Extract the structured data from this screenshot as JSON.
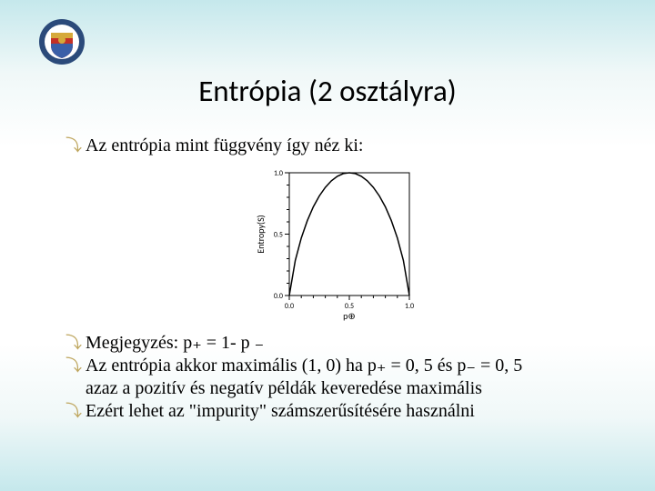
{
  "title": "Entrópia (2 osztályra)",
  "bullet_intro": "Az entrópia mint függvény így néz ki:",
  "notes": {
    "line1": "Megjegyzés: p₊ = 1- p ₋",
    "line2": "Az entrópia akkor maximális (1, 0) ha p₊ = 0, 5 és p₋ = 0, 5",
    "line3": "azaz a pozitív és negatív példák keveredése maximális",
    "line4": "Ezért lehet az \"impurity\" számszerűsítésére használni"
  },
  "chart": {
    "type": "line",
    "xlabel": "p⊕",
    "ylabel": "Entropy(S)",
    "xlim": [
      0,
      1
    ],
    "ylim": [
      0,
      1
    ],
    "xtick_step": 0.5,
    "ytick_step": 0.5,
    "xtick_labels": [
      "0.0",
      "0.5",
      "1.0"
    ],
    "ytick_labels": [
      "0.0",
      "0.5",
      "1.0"
    ],
    "minor_tick_count": 4,
    "curve_color": "#000000",
    "axis_color": "#000000",
    "background": "#ffffff",
    "label_fontsize": 10,
    "tick_fontsize": 8,
    "curve_points": [
      [
        0.0,
        0.0
      ],
      [
        0.05,
        0.286
      ],
      [
        0.1,
        0.469
      ],
      [
        0.15,
        0.61
      ],
      [
        0.2,
        0.722
      ],
      [
        0.25,
        0.811
      ],
      [
        0.3,
        0.881
      ],
      [
        0.35,
        0.934
      ],
      [
        0.4,
        0.971
      ],
      [
        0.45,
        0.993
      ],
      [
        0.5,
        1.0
      ],
      [
        0.55,
        0.993
      ],
      [
        0.6,
        0.971
      ],
      [
        0.65,
        0.934
      ],
      [
        0.7,
        0.881
      ],
      [
        0.75,
        0.811
      ],
      [
        0.8,
        0.722
      ],
      [
        0.85,
        0.61
      ],
      [
        0.9,
        0.469
      ],
      [
        0.95,
        0.286
      ],
      [
        1.0,
        0.0
      ]
    ]
  },
  "logo_colors": {
    "ring_outer": "#2b4a7a",
    "ring_text": "#ffffff",
    "shield_red": "#c43026",
    "shield_blue": "#3a5fa8",
    "shield_gold": "#d6a93a"
  }
}
